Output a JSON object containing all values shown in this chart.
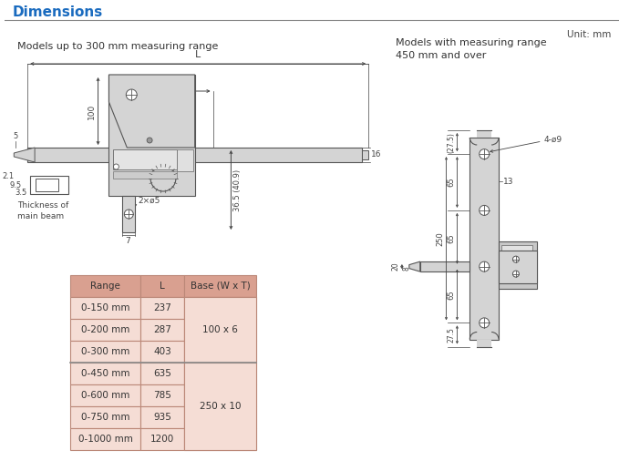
{
  "title": "Dimensions",
  "title_color": "#1a6bbf",
  "bg_color": "#ffffff",
  "unit_text": "Unit: mm",
  "left_label": "Models up to 300 mm measuring range",
  "right_label": "Models with measuring range\n450 mm and over",
  "table_header": [
    "Range",
    "L",
    "Base (W x T)"
  ],
  "table_rows": [
    [
      "0-150 mm",
      "237",
      ""
    ],
    [
      "0-200 mm",
      "287",
      "100 x 6"
    ],
    [
      "0-300 mm",
      "403",
      ""
    ],
    [
      "0-450 mm",
      "635",
      ""
    ],
    [
      "0-600 mm",
      "785",
      "250 x 10"
    ],
    [
      "0-750 mm",
      "935",
      ""
    ],
    [
      "0-1000 mm",
      "1200",
      ""
    ]
  ],
  "header_bg": "#d9a090",
  "row_bg": "#f5ddd5",
  "table_text_color": "#333333",
  "dim_line_color": "#444444",
  "body_bg": "#d4d4d4",
  "body_outline": "#555555",
  "border_color": "#333333",
  "sep_line_color": "#888888"
}
